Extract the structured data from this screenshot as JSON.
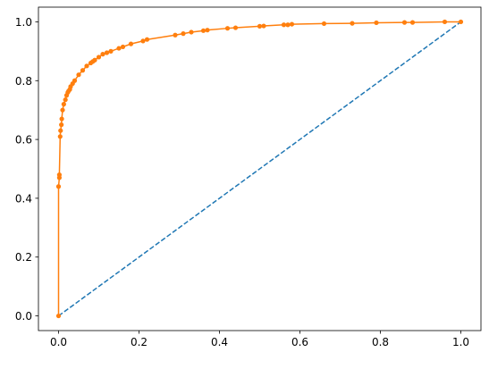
{
  "chart_data": {
    "type": "line",
    "title": "",
    "xlabel": "",
    "ylabel": "",
    "xlim": [
      -0.05,
      1.05
    ],
    "ylim": [
      -0.05,
      1.05
    ],
    "x_ticks": [
      "0.0",
      "0.2",
      "0.4",
      "0.6",
      "0.8",
      "1.0"
    ],
    "y_ticks": [
      "0.0",
      "0.2",
      "0.4",
      "0.6",
      "0.8",
      "1.0"
    ],
    "grid": false,
    "legend": "none",
    "series": [
      {
        "style": "dashed",
        "color": "#1f77b4",
        "markers": false,
        "x": [
          0.0,
          1.0
        ],
        "y": [
          0.0,
          1.0
        ]
      },
      {
        "style": "solid",
        "color": "#ff7f0e",
        "markers": true,
        "x": [
          0.0,
          0.0,
          0.002,
          0.002,
          0.004,
          0.005,
          0.007,
          0.008,
          0.01,
          0.013,
          0.017,
          0.02,
          0.023,
          0.025,
          0.028,
          0.03,
          0.035,
          0.04,
          0.05,
          0.06,
          0.07,
          0.08,
          0.085,
          0.09,
          0.1,
          0.11,
          0.12,
          0.13,
          0.15,
          0.16,
          0.18,
          0.21,
          0.22,
          0.29,
          0.31,
          0.33,
          0.36,
          0.37,
          0.42,
          0.44,
          0.5,
          0.51,
          0.56,
          0.57,
          0.58,
          0.66,
          0.73,
          0.79,
          0.86,
          0.88,
          0.96,
          1.0
        ],
        "y": [
          0.0,
          0.44,
          0.47,
          0.48,
          0.61,
          0.63,
          0.65,
          0.67,
          0.7,
          0.72,
          0.735,
          0.75,
          0.76,
          0.765,
          0.77,
          0.78,
          0.79,
          0.8,
          0.82,
          0.835,
          0.85,
          0.86,
          0.865,
          0.87,
          0.88,
          0.89,
          0.895,
          0.9,
          0.91,
          0.915,
          0.925,
          0.935,
          0.94,
          0.955,
          0.96,
          0.965,
          0.97,
          0.972,
          0.978,
          0.98,
          0.985,
          0.986,
          0.99,
          0.99,
          0.992,
          0.994,
          0.995,
          0.997,
          0.998,
          0.998,
          1.0,
          1.0
        ]
      }
    ]
  }
}
